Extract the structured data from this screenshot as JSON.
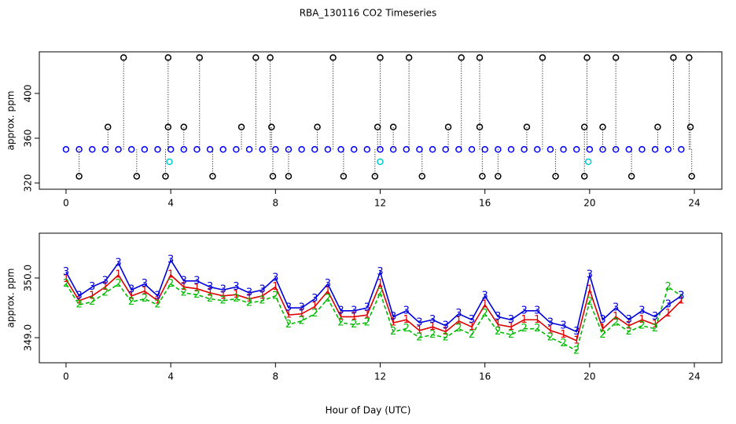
{
  "chart_data": [
    {
      "type": "scatter",
      "title": "RBA_130116  CO2 Timeseries",
      "y_label": "approx. ppm",
      "xlim": [
        -1.02,
        25.05
      ],
      "xticks": [
        0,
        4,
        8,
        12,
        16,
        20,
        24
      ],
      "ylim": [
        314.4,
        437.2
      ],
      "yticks": [
        320,
        360,
        400
      ],
      "series": [
        {
          "color": "#0000ff",
          "marker": "circle",
          "x": [
            0,
            0.5,
            1,
            1.5,
            2,
            2.5,
            3,
            3.5,
            4,
            4.5,
            5,
            5.5,
            6,
            6.5,
            7,
            7.5,
            8,
            8.5,
            9,
            9.5,
            10,
            10.5,
            11,
            11.5,
            12,
            12.5,
            13,
            13.5,
            14,
            14.5,
            15,
            15.5,
            16,
            16.5,
            17,
            17.5,
            18,
            18.5,
            19,
            19.5,
            20,
            20.5,
            21,
            21.5,
            22,
            22.5,
            23,
            23.5
          ],
          "values": [
            350,
            350,
            350,
            350,
            350,
            350,
            350,
            350,
            350,
            350,
            350,
            350,
            350,
            350,
            350,
            350,
            350,
            350,
            350,
            350,
            350,
            350,
            350,
            350,
            350,
            350,
            350,
            350,
            350,
            350,
            350,
            350,
            350,
            350,
            350,
            350,
            350,
            350,
            350,
            350,
            350,
            350,
            350,
            350,
            350,
            350,
            350,
            350
          ]
        },
        {
          "color": "#000000",
          "marker": "circle",
          "drop_lines": true,
          "x": [
            2.2,
            3.9,
            5.1,
            7.25,
            7.8,
            10.2,
            12,
            13.1,
            15.1,
            15.8,
            18.2,
            19.9,
            21,
            23.2,
            23.8,
            1.6,
            3.9,
            4.5,
            6.7,
            7.85,
            9.6,
            11.9,
            12.5,
            14.6,
            15.8,
            17.6,
            19.8,
            20.5,
            22.6,
            23.85,
            0.5,
            2.7,
            3.8,
            5.6,
            7.9,
            8.5,
            10.6,
            11.8,
            13.6,
            15.9,
            16.5,
            18.7,
            19.8,
            21.6,
            23.9
          ],
          "values": [
            432,
            432,
            432,
            432,
            432,
            432,
            432,
            432,
            432,
            432,
            432,
            432,
            432,
            432,
            432,
            370,
            370,
            370,
            370,
            370,
            370,
            370,
            370,
            370,
            370,
            370,
            370,
            370,
            370,
            370,
            326,
            326,
            326,
            326,
            326,
            326,
            326,
            326,
            326,
            326,
            326,
            326,
            326,
            326,
            326
          ]
        },
        {
          "color": "#00cccc",
          "marker": "circle",
          "x": [
            3.95,
            12,
            19.95
          ],
          "values": [
            339,
            339,
            339
          ]
        }
      ]
    },
    {
      "type": "line",
      "y_label": "approx. ppm",
      "x_label": "Hour of Day (UTC)",
      "xlim": [
        -1.02,
        25.05
      ],
      "xticks": [
        0,
        4,
        8,
        12,
        16,
        20,
        24
      ],
      "ylim": [
        348.58,
        350.75
      ],
      "yticks": [
        {
          "value": 349,
          "label": "349.0"
        },
        {
          "value": 350,
          "label": "350.0"
        }
      ],
      "x": [
        0,
        0.5,
        1,
        1.5,
        2,
        2.5,
        3,
        3.5,
        4,
        4.5,
        5,
        5.5,
        6,
        6.5,
        7,
        7.5,
        8,
        8.5,
        9,
        9.5,
        10,
        10.5,
        11,
        11.5,
        12,
        12.5,
        13,
        13.5,
        14,
        14.5,
        15,
        15.5,
        16,
        16.5,
        17,
        17.5,
        18,
        18.5,
        19,
        19.5,
        20,
        20.5,
        21,
        21.5,
        22,
        22.5,
        23,
        23.5
      ],
      "series": [
        {
          "name": "1",
          "color": "#dd0000",
          "values": [
            349.98,
            349.62,
            349.7,
            349.85,
            350.05,
            349.7,
            349.78,
            349.62,
            350.05,
            349.85,
            349.82,
            349.75,
            349.7,
            349.72,
            349.65,
            349.7,
            349.85,
            349.38,
            349.4,
            349.52,
            349.78,
            349.35,
            349.35,
            349.38,
            349.9,
            349.25,
            349.3,
            349.12,
            349.18,
            349.1,
            349.28,
            349.18,
            349.55,
            349.22,
            349.18,
            349.3,
            349.3,
            349.12,
            349.05,
            348.95,
            349.8,
            349.15,
            349.35,
            349.2,
            349.3,
            349.22,
            349.4,
            349.62
          ]
        },
        {
          "name": "2",
          "color": "#00bb00",
          "values": [
            349.9,
            349.55,
            349.6,
            349.75,
            349.9,
            349.6,
            349.65,
            349.55,
            349.9,
            349.75,
            349.72,
            349.65,
            349.62,
            349.65,
            349.58,
            349.62,
            349.7,
            349.22,
            349.28,
            349.4,
            349.65,
            349.25,
            349.22,
            349.25,
            349.75,
            349.1,
            349.15,
            349.0,
            349.05,
            349.0,
            349.15,
            349.05,
            349.4,
            349.1,
            349.05,
            349.15,
            349.15,
            349.0,
            348.9,
            348.78,
            349.6,
            349.05,
            349.25,
            349.1,
            349.2,
            349.15,
            349.85,
            349.7
          ]
        },
        {
          "name": "3",
          "color": "#0000dd",
          "values": [
            350.1,
            349.7,
            349.85,
            349.95,
            350.25,
            349.8,
            349.9,
            349.7,
            350.3,
            349.95,
            349.95,
            349.85,
            349.8,
            349.85,
            349.75,
            349.8,
            350.0,
            349.5,
            349.5,
            349.65,
            349.9,
            349.45,
            349.45,
            349.5,
            350.1,
            349.35,
            349.45,
            349.25,
            349.3,
            349.2,
            349.4,
            349.3,
            349.7,
            349.35,
            349.3,
            349.45,
            349.45,
            349.25,
            349.2,
            349.1,
            350.05,
            349.3,
            349.5,
            349.3,
            349.45,
            349.35,
            349.55,
            349.7
          ]
        }
      ]
    }
  ]
}
